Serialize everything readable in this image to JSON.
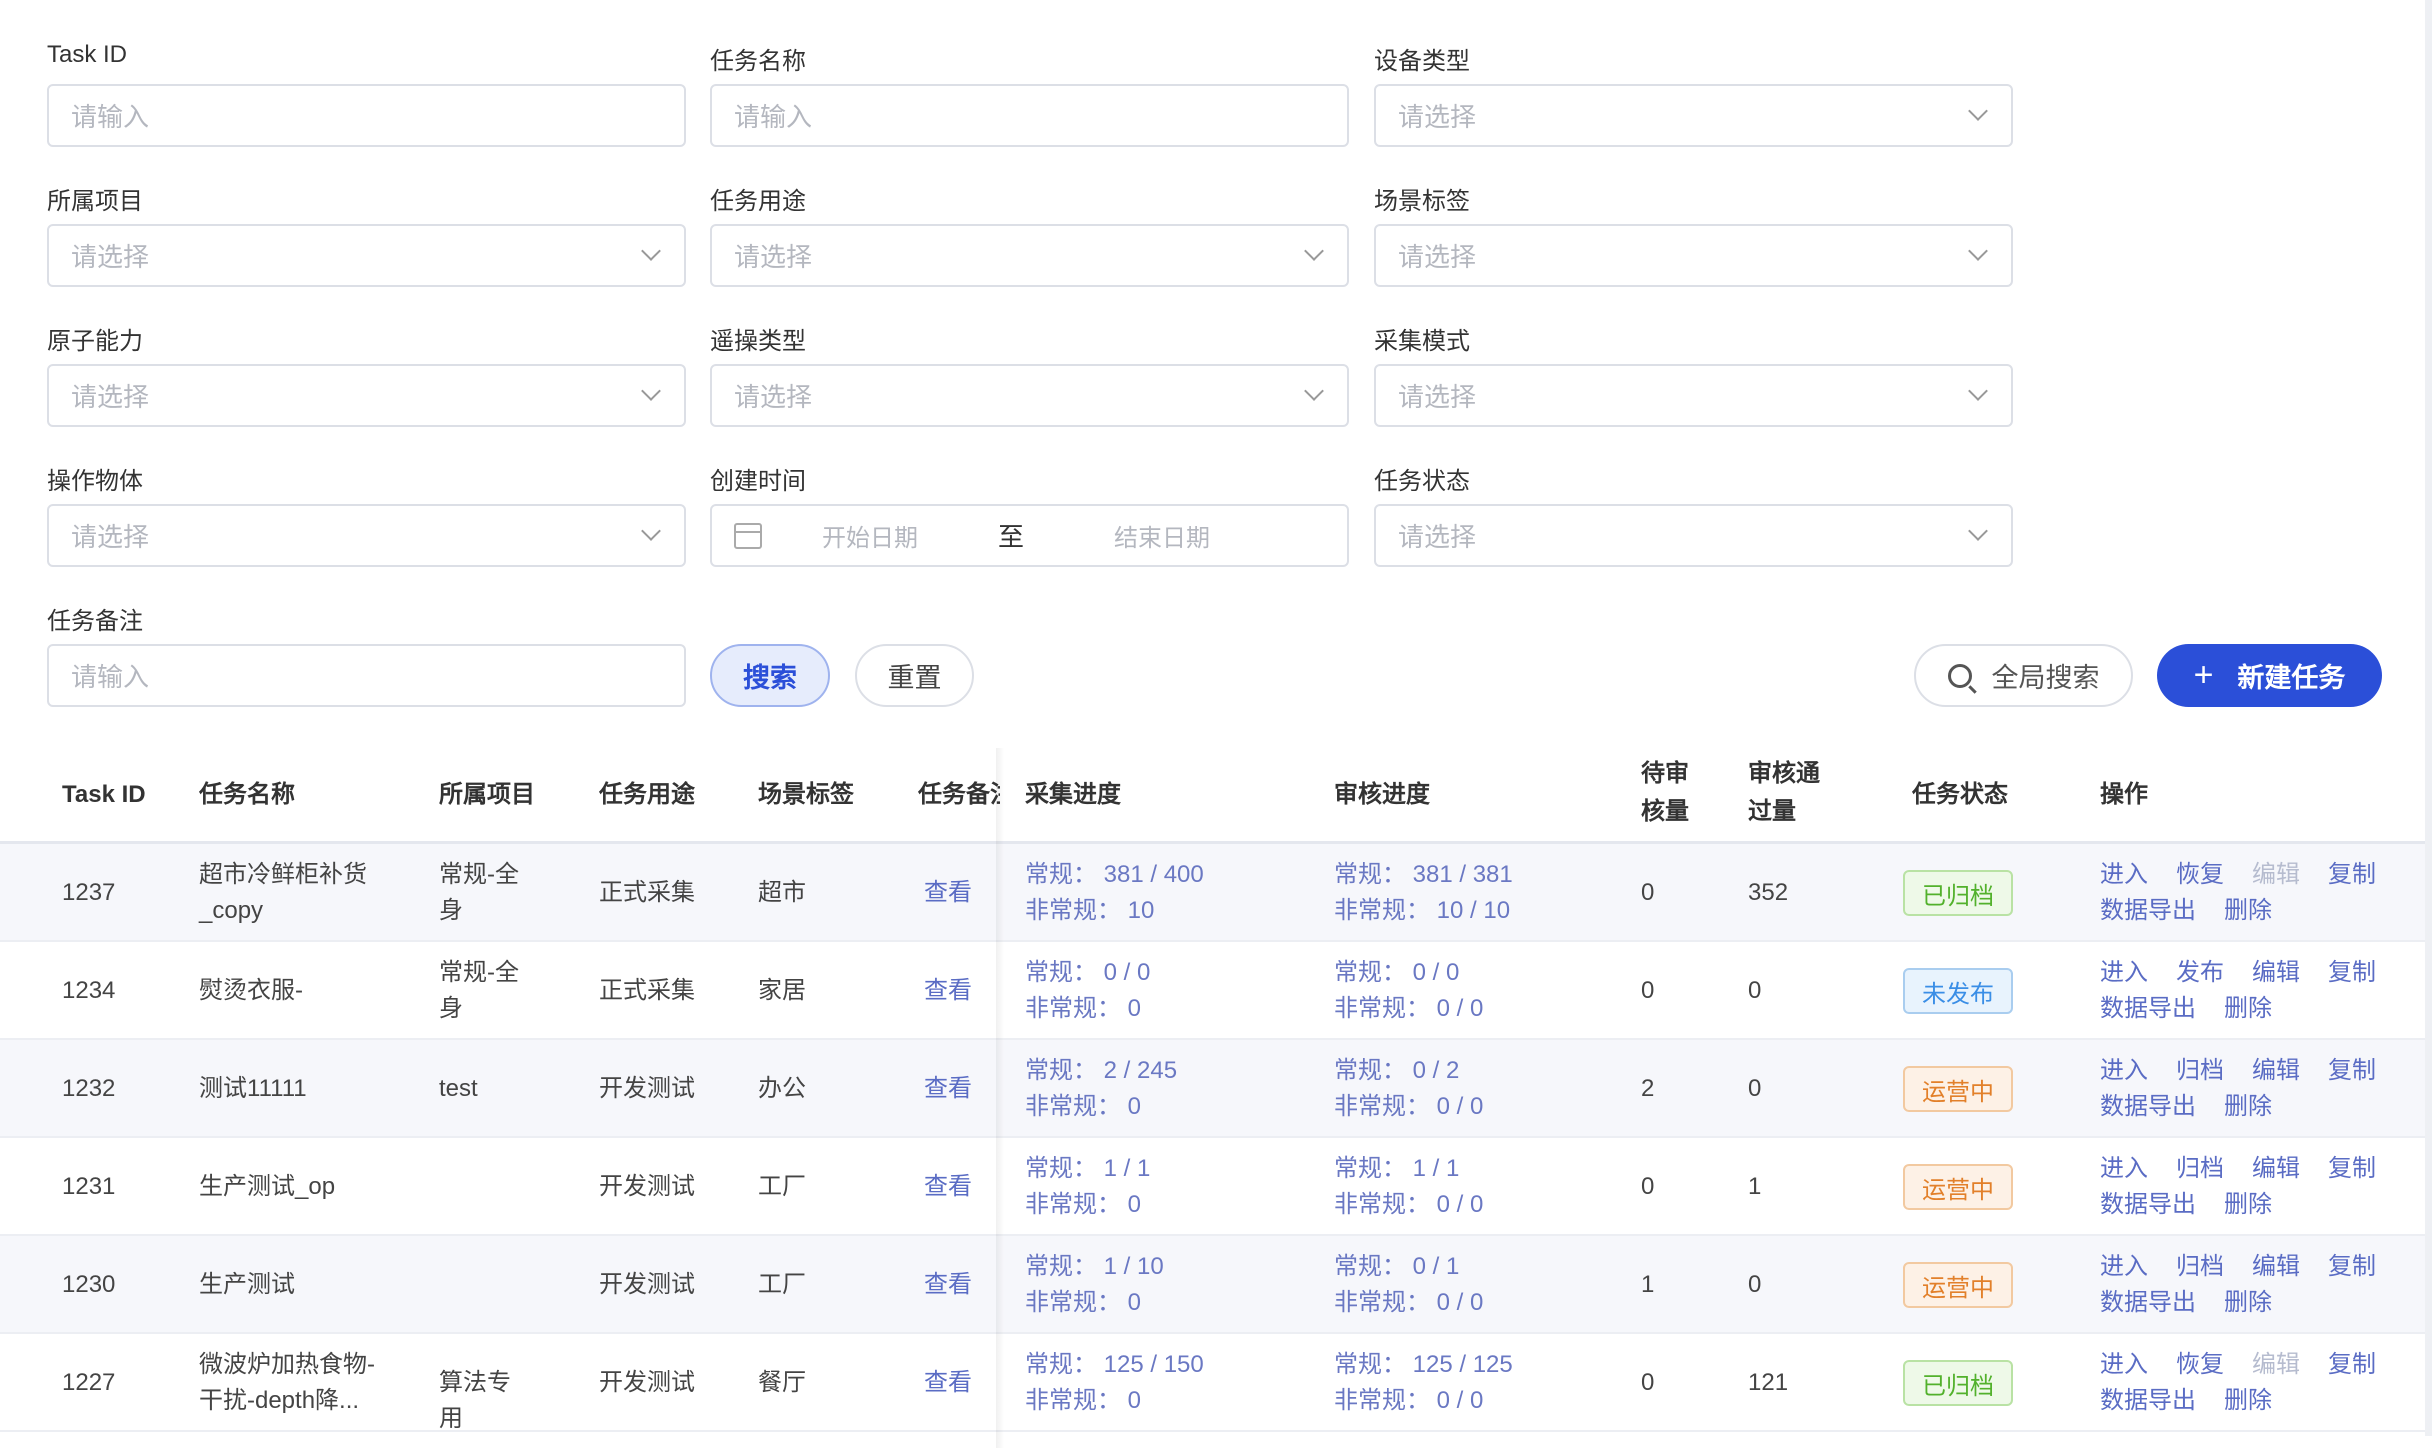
{
  "filters": [
    {
      "label": "Task ID",
      "placeholder": "请输入",
      "type": "input"
    },
    {
      "label": "任务名称",
      "placeholder": "请输入",
      "type": "input"
    },
    {
      "label": "设备类型",
      "placeholder": "请选择",
      "type": "select"
    },
    {
      "label": "所属项目",
      "placeholder": "请选择",
      "type": "select"
    },
    {
      "label": "任务用途",
      "placeholder": "请选择",
      "type": "select"
    },
    {
      "label": "场景标签",
      "placeholder": "请选择",
      "type": "select"
    },
    {
      "label": "原子能力",
      "placeholder": "请选择",
      "type": "select"
    },
    {
      "label": "遥操类型",
      "placeholder": "请选择",
      "type": "select"
    },
    {
      "label": "采集模式",
      "placeholder": "请选择",
      "type": "select"
    },
    {
      "label": "操作物体",
      "placeholder": "请选择",
      "type": "select"
    },
    {
      "label": "创建时间",
      "type": "date",
      "start_placeholder": "开始日期",
      "separator": "至",
      "end_placeholder": "结束日期"
    },
    {
      "label": "任务状态",
      "placeholder": "请选择",
      "type": "select"
    },
    {
      "label": "任务备注",
      "placeholder": "请输入",
      "type": "input"
    }
  ],
  "buttons": {
    "search": "搜索",
    "reset": "重置",
    "global_search": "全局搜索",
    "new_task": "新建任务",
    "new_task_icon": "+"
  },
  "colors": {
    "primary": "#2b4fd8",
    "link": "#5a6cc4"
  },
  "table": {
    "headers": [
      "Task ID",
      "任务名称",
      "所属项目",
      "任务用途",
      "场景标签",
      "任务备注",
      "采集进度",
      "审核进度",
      "待审核量",
      "审核通过量",
      "任务状态",
      "操作"
    ],
    "rows": [
      {
        "id": "1237",
        "name": "超市冷鲜柜补货_copy",
        "project": "常规-全身",
        "usage": "正式采集",
        "scene": "超市",
        "note": "查看",
        "collect": [
          "常规： 381 / 400",
          "非常规： 10"
        ],
        "review": [
          "常规： 381 / 381",
          "非常规： 10 / 10"
        ],
        "pending": "0",
        "passed": "352",
        "status": "已归档",
        "status_kind": "archived",
        "actions": [
          "进入",
          "恢复",
          "编辑",
          "复制",
          "数据导出",
          "删除"
        ],
        "disabled_actions": [
          "编辑"
        ]
      },
      {
        "id": "1234",
        "name": "熨烫衣服-",
        "project": "常规-全身",
        "usage": "正式采集",
        "scene": "家居",
        "note": "查看",
        "collect": [
          "常规： 0 / 0",
          "非常规： 0"
        ],
        "review": [
          "常规： 0 / 0",
          "非常规： 0 / 0"
        ],
        "pending": "0",
        "passed": "0",
        "status": "未发布",
        "status_kind": "unpublished",
        "actions": [
          "进入",
          "发布",
          "编辑",
          "复制",
          "数据导出",
          "删除"
        ],
        "disabled_actions": []
      },
      {
        "id": "1232",
        "name": "测试11111",
        "project": "test",
        "usage": "开发测试",
        "scene": "办公",
        "note": "查看",
        "collect": [
          "常规： 2 / 245",
          "非常规： 0"
        ],
        "review": [
          "常规： 0 / 2",
          "非常规： 0 / 0"
        ],
        "pending": "2",
        "passed": "0",
        "status": "运营中",
        "status_kind": "running",
        "actions": [
          "进入",
          "归档",
          "编辑",
          "复制",
          "数据导出",
          "删除"
        ],
        "disabled_actions": []
      },
      {
        "id": "1231",
        "name": "生产测试_op",
        "project": "",
        "usage": "开发测试",
        "scene": "工厂",
        "note": "查看",
        "collect": [
          "常规： 1 / 1",
          "非常规： 0"
        ],
        "review": [
          "常规： 1 / 1",
          "非常规： 0 / 0"
        ],
        "pending": "0",
        "passed": "1",
        "status": "运营中",
        "status_kind": "running",
        "actions": [
          "进入",
          "归档",
          "编辑",
          "复制",
          "数据导出",
          "删除"
        ],
        "disabled_actions": []
      },
      {
        "id": "1230",
        "name": "生产测试",
        "project": "",
        "usage": "开发测试",
        "scene": "工厂",
        "note": "查看",
        "collect": [
          "常规： 1 / 10",
          "非常规： 0"
        ],
        "review": [
          "常规： 0 / 1",
          "非常规： 0 / 0"
        ],
        "pending": "1",
        "passed": "0",
        "status": "运营中",
        "status_kind": "running",
        "actions": [
          "进入",
          "归档",
          "编辑",
          "复制",
          "数据导出",
          "删除"
        ],
        "disabled_actions": []
      },
      {
        "id": "1227",
        "name": "微波炉加热食物-干扰-depth降...",
        "project": "算法专用",
        "usage": "开发测试",
        "scene": "餐厅",
        "note": "查看",
        "collect": [
          "常规： 125 / 150",
          "非常规： 0"
        ],
        "review": [
          "常规： 125 / 125",
          "非常规： 0 / 0"
        ],
        "pending": "0",
        "passed": "121",
        "status": "已归档",
        "status_kind": "archived",
        "actions": [
          "进入",
          "恢复",
          "编辑",
          "复制",
          "数据导出",
          "删除"
        ],
        "disabled_actions": [
          "编辑"
        ]
      }
    ]
  }
}
